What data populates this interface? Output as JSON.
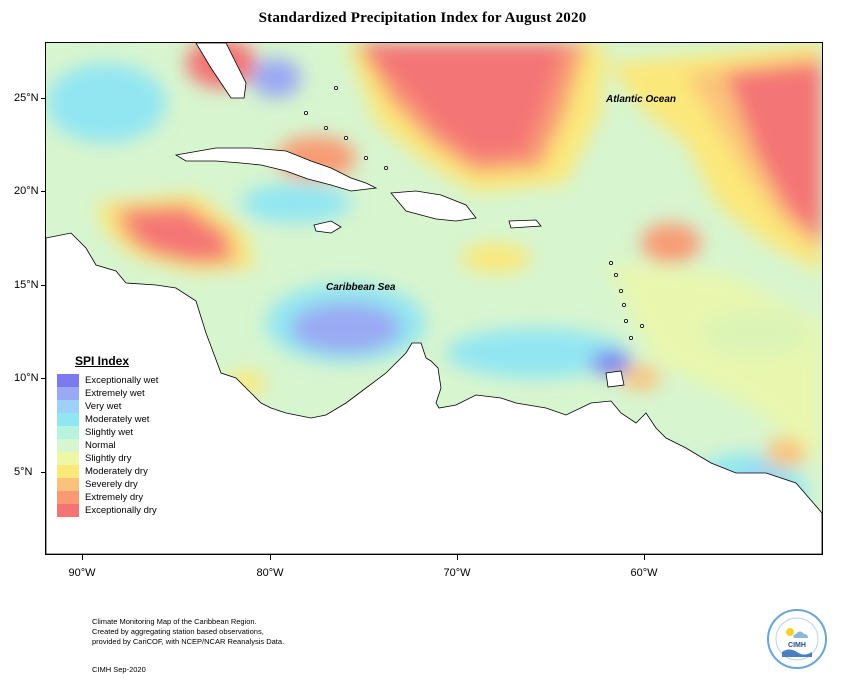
{
  "title": "Standardized Precipitation Index for August 2020",
  "map": {
    "lat_labels": [
      "25°N",
      "20°N",
      "15°N",
      "10°N",
      "5°N"
    ],
    "lon_labels": [
      "90°W",
      "80°W",
      "70°W",
      "60°W"
    ],
    "ocean_labels": {
      "atlantic": "Atlantic Ocean",
      "caribbean": "Caribbean Sea"
    }
  },
  "legend": {
    "title": "SPI Index",
    "items": [
      {
        "label": "Exceptionally wet",
        "color": "#7b7bef"
      },
      {
        "label": "Extremely wet",
        "color": "#9aa9f3"
      },
      {
        "label": "Very wet",
        "color": "#9fd0f7"
      },
      {
        "label": "Moderately wet",
        "color": "#92e6f2"
      },
      {
        "label": "Slightly wet",
        "color": "#b8f3de"
      },
      {
        "label": "Normal",
        "color": "#d7f5cf"
      },
      {
        "label": "Slightly dry",
        "color": "#eef7a6"
      },
      {
        "label": "Moderately dry",
        "color": "#fbe87a"
      },
      {
        "label": "Severely dry",
        "color": "#fbc37a"
      },
      {
        "label": "Extremely dry",
        "color": "#f89b74"
      },
      {
        "label": "Exceptionally dry",
        "color": "#f47474"
      }
    ]
  },
  "footer": {
    "line1": "Climate Monitoring Map of the Caribbean Region.",
    "line2": "Created by aggregating station based observations,",
    "line3": "provided by CariCOF, with NCEP/NCAR Reanalysis Data.",
    "date": "CIMH Sep-2020"
  },
  "logo": {
    "text": "CIMH"
  }
}
